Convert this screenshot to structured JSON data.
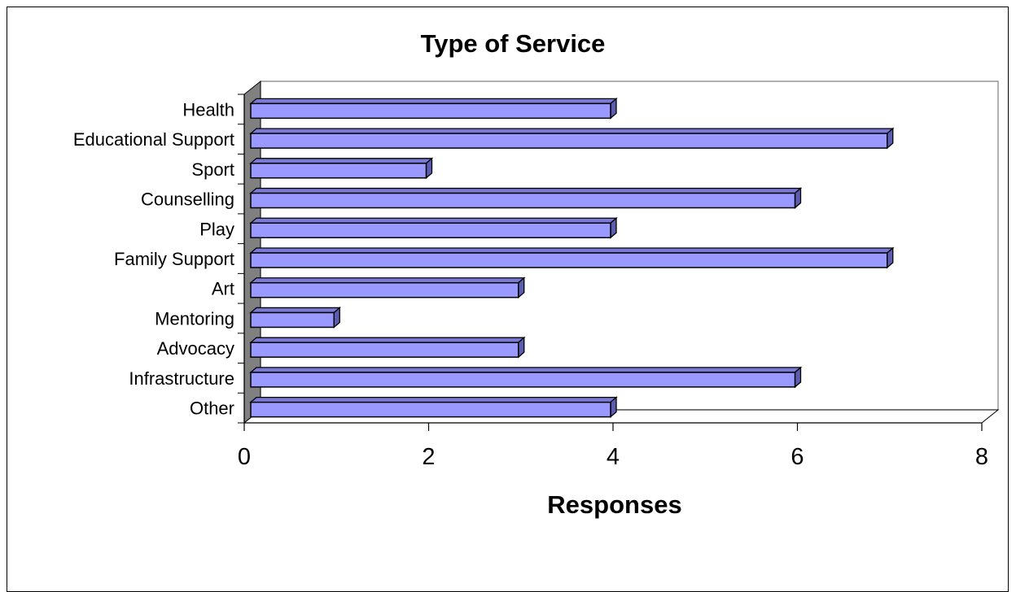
{
  "chart_data": {
    "type": "bar",
    "orientation": "horizontal",
    "title": "Type of Service",
    "xlabel": "Responses",
    "ylabel": "",
    "categories": [
      "Health",
      "Educational Support",
      "Sport",
      "Counselling",
      "Play",
      "Family Support",
      "Art",
      "Mentoring",
      "Advocacy",
      "Infrastructure",
      "Other"
    ],
    "values": [
      4,
      7,
      2,
      6,
      4,
      7,
      3,
      1,
      3,
      6,
      4
    ],
    "xlim": [
      0,
      8
    ],
    "xticks": [
      "0",
      "2",
      "4",
      "6",
      "8"
    ],
    "grid": false,
    "legend": "none",
    "colors": {
      "bar_face": "#9999ff",
      "bar_top": "#7a7ad6",
      "bar_side": "#5c5cb0",
      "side_wall": "#808080",
      "outline": "#000000"
    }
  }
}
